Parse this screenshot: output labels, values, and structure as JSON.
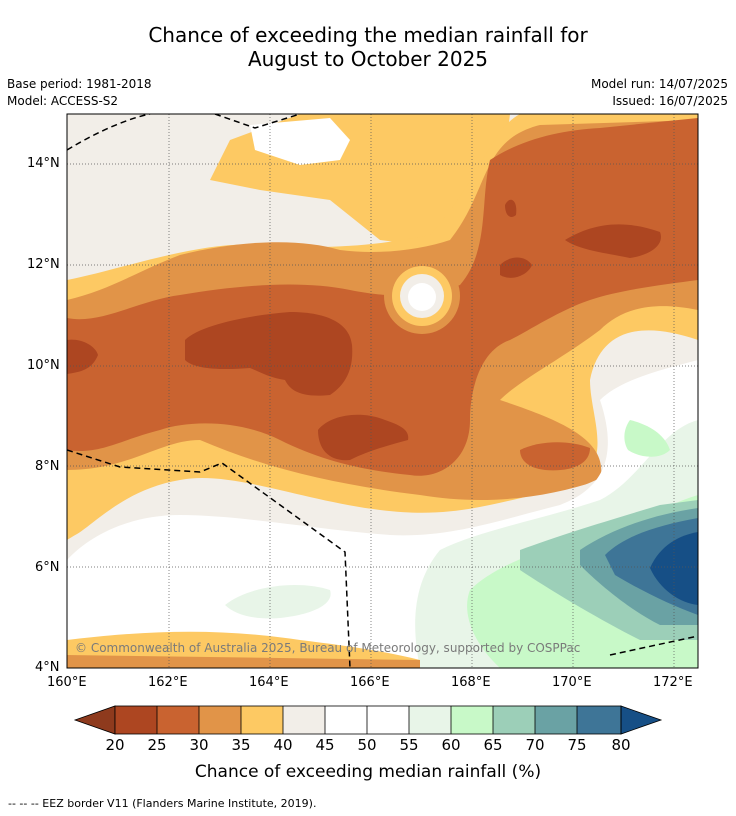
{
  "title_line1": "Chance of exceeding the median rainfall for",
  "title_line2": "August to October 2025",
  "meta": {
    "base_period": "Base period: 1981-2018",
    "model": "Model: ACCESS-S2",
    "model_run": "Model run: 14/07/2025",
    "issued": "Issued: 16/07/2025"
  },
  "axes": {
    "y_ticks": [
      "14°N",
      "12°N",
      "10°N",
      "8°N",
      "6°N",
      "4°N"
    ],
    "x_ticks": [
      "160°E",
      "162°E",
      "164°E",
      "166°E",
      "168°E",
      "170°E",
      "172°E"
    ]
  },
  "map": {
    "colors": {
      "20-25": "#ad4621",
      "25-30": "#c96330",
      "30-35": "#e19448",
      "35-40": "#fdc963",
      "40-45": "#f2eee8",
      "45-55": "#ffffff",
      "55-60": "#e8f5e8",
      "60-65": "#c8f9c8",
      "65-70": "#9ccfb8",
      "70-75": "#6aa2a4",
      "75-80": "#3e7597",
      "80+": "#164f86"
    },
    "copyright": "© Commonwealth of Australia 2025, Bureau of Meteorology, supported by COSPPac"
  },
  "colorbar": {
    "labels": [
      "20",
      "25",
      "30",
      "35",
      "40",
      "45",
      "50",
      "55",
      "60",
      "65",
      "70",
      "75",
      "80"
    ],
    "title": "Chance of exceeding median rainfall (%)"
  },
  "footnote": "--  --  -- EEZ border V11 (Flanders Marine Institute, 2019)."
}
